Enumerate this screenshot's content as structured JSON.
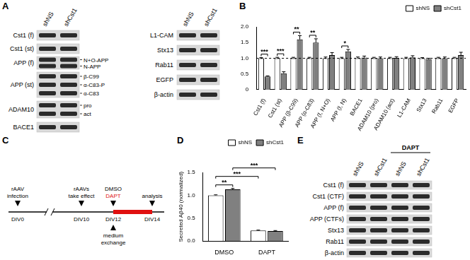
{
  "panel_labels": [
    "A",
    "B",
    "C",
    "D",
    "E"
  ],
  "blots": [
    {
      "lanes": [
        {
          "name": "shNS"
        },
        {
          "name": "shCst1"
        }
      ],
      "rows": [
        {
          "label": "Cst1 (f)"
        },
        {
          "label": "Cst1 (st)"
        },
        {
          "label": "APP (f)",
          "bands": [
            "N+O-APP",
            "N-APP"
          ]
        },
        {
          "label": "APP (st)",
          "bands": [
            "β-C99",
            "α-C83-P",
            "α-C83"
          ]
        },
        {
          "label": "ADAM10",
          "bands": [
            "pro",
            "act"
          ]
        },
        {
          "label": "BACE1"
        }
      ]
    },
    {
      "lanes": [
        {
          "name": "shNS"
        },
        {
          "name": "shCst1"
        }
      ],
      "rows": [
        {
          "label": "L1-CAM"
        },
        {
          "label": "Stx13"
        },
        {
          "label": "Rab11"
        },
        {
          "label": "EGFP"
        },
        {
          "label": "β-actin"
        }
      ]
    },
    {
      "lanes": [
        {
          "name": "shNS"
        },
        {
          "name": "shCst1"
        },
        {
          "name": "shNS",
          "group": "DAPT"
        },
        {
          "name": "shCst1",
          "group": "DAPT"
        }
      ],
      "rows": [
        {
          "label": "Cst1 (f)"
        },
        {
          "label": "Cst1 (CTF)"
        },
        {
          "label": "APP (f)"
        },
        {
          "label": "APP (CTFs)"
        },
        {
          "label": "Stx13"
        },
        {
          "label": "Rab11"
        },
        {
          "label": "β-actin"
        }
      ]
    }
  ],
  "timeline": {
    "points": [
      {
        "label": "DIV0",
        "above": [
          "rAAV",
          "infection"
        ]
      },
      {
        "label": "DIV10",
        "above": [
          "rAAVs",
          "take effect"
        ]
      },
      {
        "label": "DIV12",
        "above": [
          "DMSO"
        ],
        "below": [
          "medium",
          "exchange"
        ]
      },
      {
        "label": "DIV14",
        "above": [
          "analysis"
        ]
      }
    ],
    "break_after": "DIV0",
    "treatment": {
      "from": "DIV12",
      "to": "DIV14",
      "label": "DAPT",
      "color": "#e01010"
    }
  },
  "chart_data": [
    {
      "type": "bar",
      "categories": [
        "Cst1 (f)",
        "Cst1 (st)",
        "APP (β-C99)",
        "APP (α-C83)",
        "APP (f, N+O)",
        "APP (f, N)",
        "BACE1",
        "ADAM10 (pro)",
        "ADAM10 (act)",
        "L1-CAM",
        "Stx13",
        "Rab11",
        "EGFP"
      ],
      "series": [
        {
          "name": "shNS",
          "color": "#ffffff",
          "values": [
            1,
            1,
            1,
            1,
            1,
            1,
            1,
            1,
            1,
            1,
            1,
            1,
            1
          ],
          "errors": [
            0.02,
            0.03,
            0.03,
            0.03,
            0.04,
            0.03,
            0.04,
            0.03,
            0.03,
            0.03,
            0.02,
            0.03,
            0.03
          ]
        },
        {
          "name": "shCst1",
          "color": "#808080",
          "values": [
            0.42,
            0.52,
            1.6,
            1.5,
            1.1,
            1.22,
            1.02,
            1.0,
            1.01,
            1.03,
            0.97,
            1.0,
            1.1
          ],
          "errors": [
            0.02,
            0.05,
            0.12,
            0.12,
            0.08,
            0.06,
            0.05,
            0.04,
            0.04,
            0.05,
            0.03,
            0.04,
            0.09
          ]
        }
      ],
      "ylim": [
        0,
        2
      ],
      "yticks": [
        0,
        0.5,
        {
          "value": 1,
          "label": "1.0"
        },
        1.5,
        {
          "value": 2,
          "label": "2.0"
        }
      ],
      "reference_line": 1,
      "legend": "top-right",
      "significance": [
        {
          "from": [
            "Cst1 (f)",
            "shNS"
          ],
          "to": [
            "Cst1 (f)",
            "shCst1"
          ],
          "label": "***"
        },
        {
          "from": [
            "Cst1 (st)",
            "shNS"
          ],
          "to": [
            "Cst1 (st)",
            "shCst1"
          ],
          "label": "***"
        },
        {
          "from": [
            "APP (β-C99)",
            "shNS"
          ],
          "to": [
            "APP (β-C99)",
            "shCst1"
          ],
          "label": "**"
        },
        {
          "from": [
            "APP (α-C83)",
            "shNS"
          ],
          "to": [
            "APP (α-C83)",
            "shCst1"
          ],
          "label": "**"
        },
        {
          "from": [
            "APP (f, N)",
            "shNS"
          ],
          "to": [
            "APP (f, N)",
            "shCst1"
          ],
          "label": "*"
        }
      ]
    },
    {
      "type": "bar",
      "categories": [
        "DMSO",
        "DAPT"
      ],
      "ylabel": "Secreted Aβ40 (normalized)",
      "series": [
        {
          "name": "shNS",
          "color": "#ffffff",
          "values": [
            1.0,
            0.23
          ],
          "errors": [
            0.01,
            0.01
          ]
        },
        {
          "name": "shCst1",
          "color": "#808080",
          "values": [
            1.13,
            0.22
          ],
          "errors": [
            0.02,
            0.01
          ]
        }
      ],
      "ylim": [
        0,
        1.5
      ],
      "yticks": [
        {
          "value": 0,
          "label": "0.0"
        },
        0.5,
        {
          "value": 1,
          "label": "1.0"
        },
        1.5
      ],
      "legend": "top-right",
      "significance": [
        {
          "from": [
            "DMSO",
            "shNS"
          ],
          "to": [
            "DMSO",
            "shCst1"
          ],
          "label": "**"
        },
        {
          "from": [
            "DMSO",
            "shNS"
          ],
          "to": [
            "DAPT",
            "shNS"
          ],
          "label": "***"
        },
        {
          "from": [
            "DMSO",
            "shCst1"
          ],
          "to": [
            "DAPT",
            "shCst1"
          ],
          "label": "***"
        }
      ]
    }
  ]
}
